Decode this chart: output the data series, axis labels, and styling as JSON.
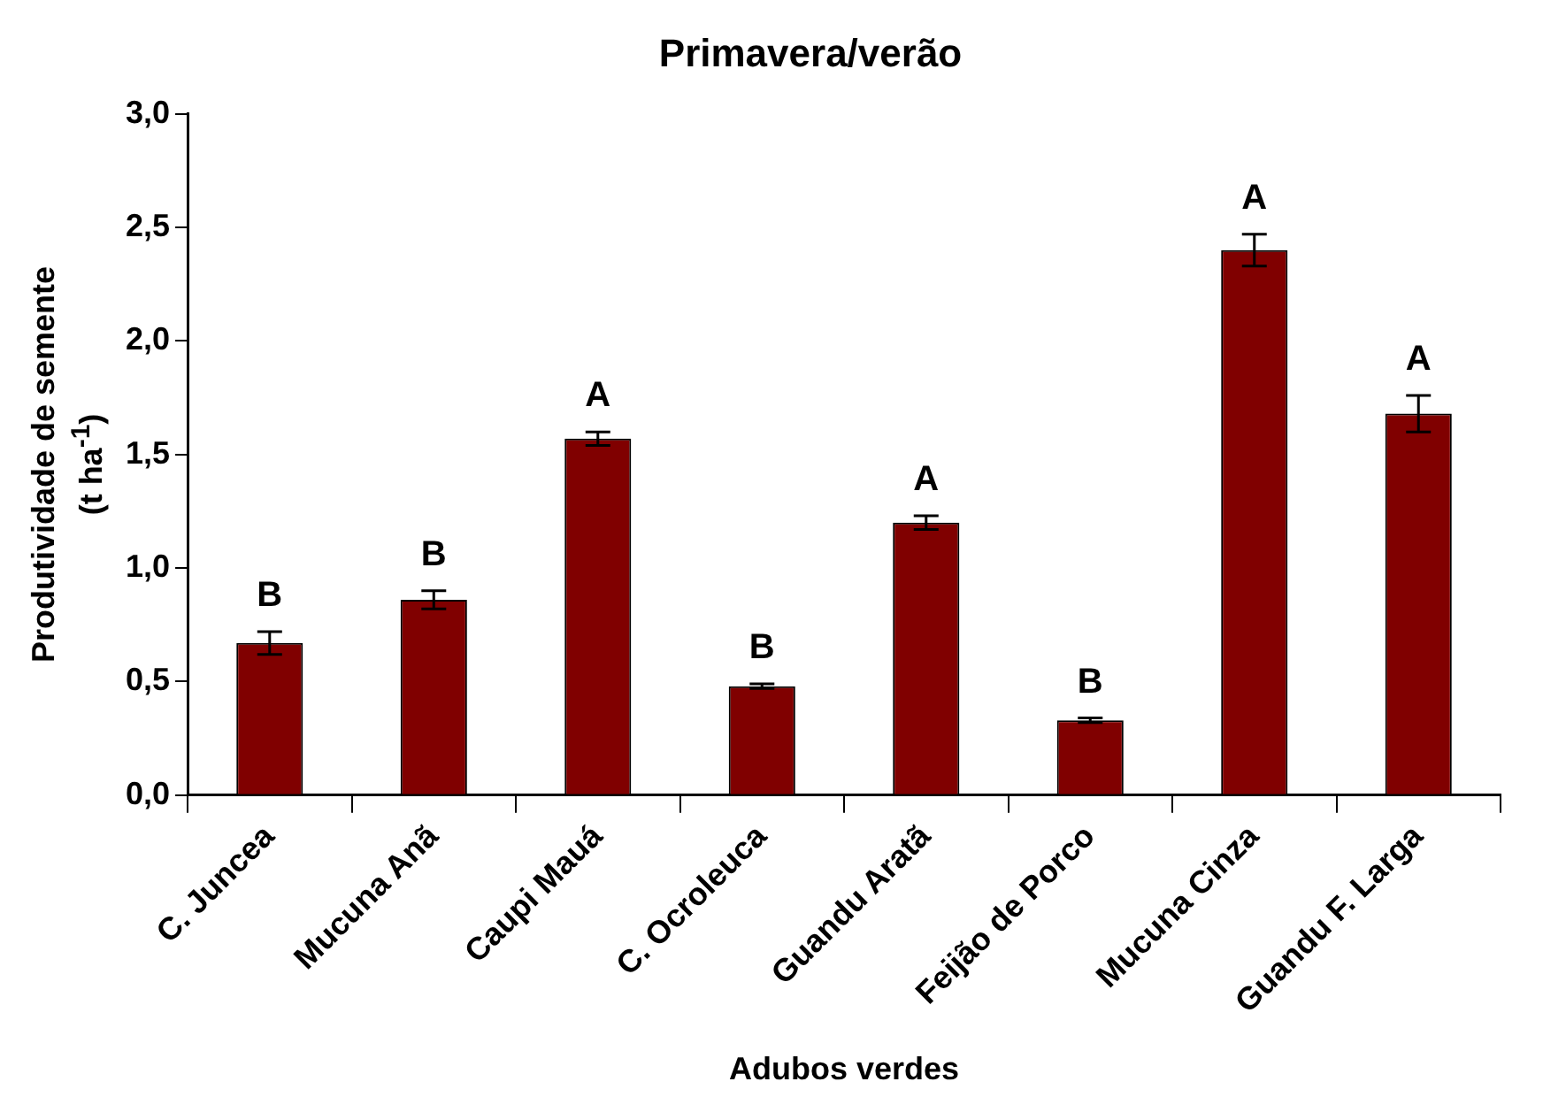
{
  "chart_data": {
    "type": "bar",
    "title": "Primavera/verão",
    "xlabel": "Adubos verdes",
    "ylabel": "Produtividade de semente\n(t ha$^{-1}$)",
    "categories": [
      "C. Juncea",
      "Mucuna Anã",
      "Caupi Mauá",
      "C. Ocroleuca",
      "Guandu Aratã",
      "Feijão de Porco",
      "Mucuna Cinza",
      "Guandu F. Larga"
    ],
    "values": [
      0.67,
      0.86,
      1.57,
      0.48,
      1.2,
      0.33,
      2.4,
      1.68
    ],
    "errors": [
      0.05,
      0.04,
      0.03,
      0.01,
      0.03,
      0.01,
      0.07,
      0.08
    ],
    "color": "#800000",
    "ylim": [
      0,
      3
    ],
    "yticks": [
      {
        "value": 0,
        "label": "0,0"
      },
      {
        "value": 0.5,
        "label": "0,5"
      },
      {
        "value": 1,
        "label": "1,0"
      },
      {
        "value": 1.5,
        "label": "1,5"
      },
      {
        "value": 2,
        "label": "2,0"
      },
      {
        "value": 2.5,
        "label": "2,5"
      },
      {
        "value": 3,
        "label": "3,0"
      }
    ],
    "annotations": [
      {
        "text": "B",
        "x": "C. Juncea",
        "y": 0.72
      },
      {
        "text": "B",
        "x": "Mucuna Anã",
        "y": 0.9
      },
      {
        "text": "A",
        "x": "Caupi Mauá",
        "y": 1.6
      },
      {
        "text": "B",
        "x": "C. Ocroleuca",
        "y": 0.49
      },
      {
        "text": "A",
        "x": "Guandu Aratã",
        "y": 1.23
      },
      {
        "text": "B",
        "x": "Feijão de Porco",
        "y": 0.34
      },
      {
        "text": "A",
        "x": "Mucuna Cinza",
        "y": 2.47
      },
      {
        "text": "A",
        "x": "Guandu F. Larga",
        "y": 1.76
      }
    ],
    "grid": false,
    "legend": false
  }
}
